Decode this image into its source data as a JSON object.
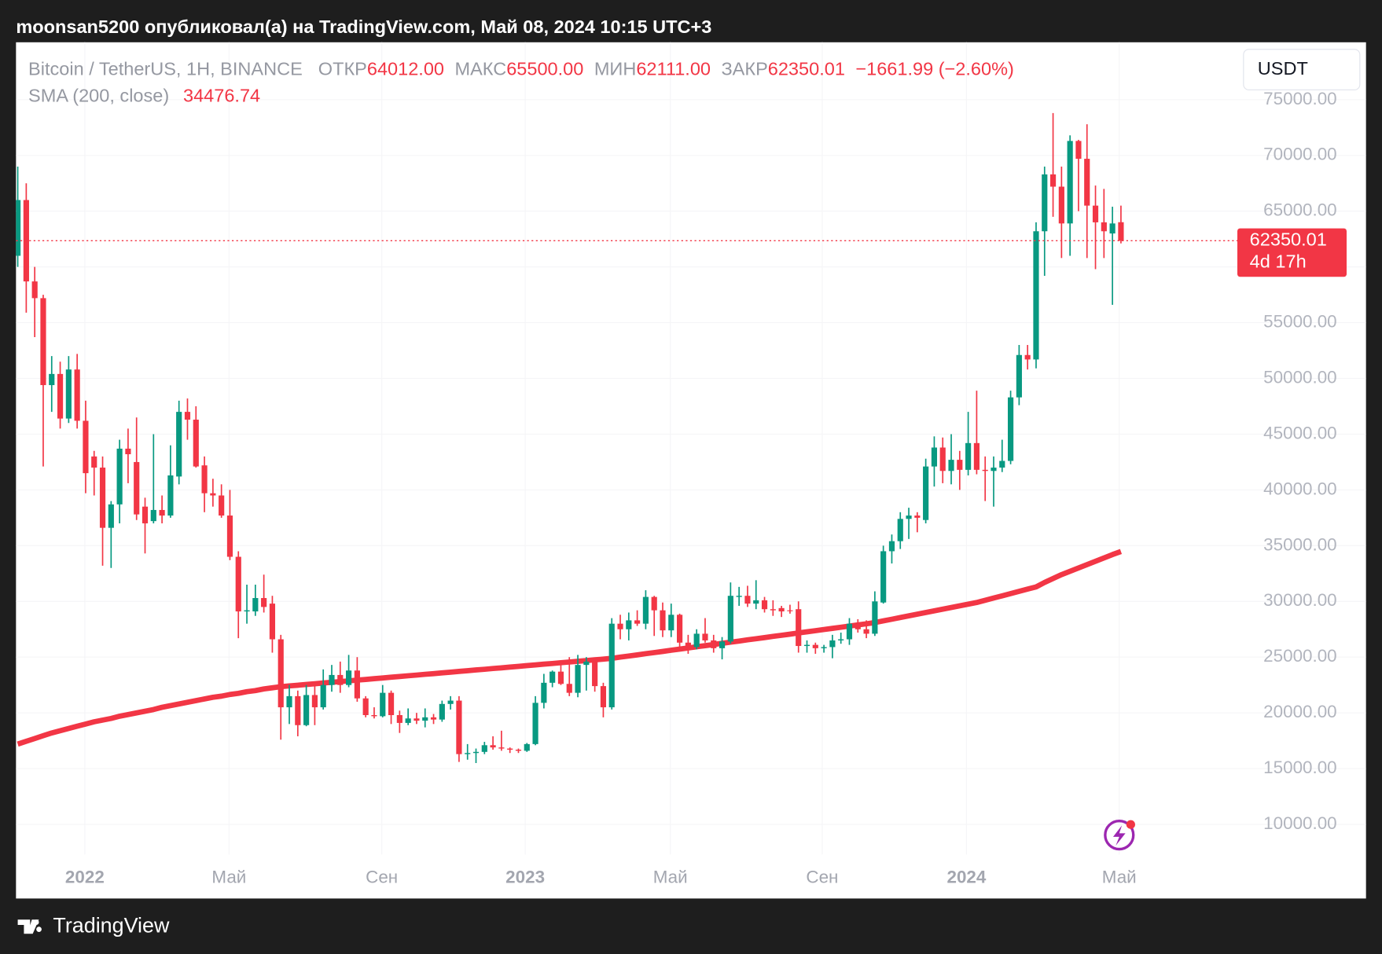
{
  "header": {
    "caption": "moonsan5200 опубликовал(а) на TradingView.com, Май 08, 2024 10:15 UTC+3"
  },
  "chart_data": {
    "type": "candlestick",
    "symbol": "Bitcoin / TetherUS, 1H, BINANCE",
    "legend_items": [
      {
        "label": "ОТКР",
        "value": "64012.00"
      },
      {
        "label": "МАКС",
        "value": "65500.00"
      },
      {
        "label": "МИН",
        "value": "62111.00"
      },
      {
        "label": "ЗАКР",
        "value": "62350.01"
      }
    ],
    "change": "−1661.99 (−2.60%)",
    "currency": "USDT",
    "countdown": "4d 17h",
    "up_color": "#089981",
    "down_color": "#f23645",
    "grid": true,
    "ylim": [
      7300,
      80150
    ],
    "yticks": [
      {
        "value": 10000,
        "label": "10000.00"
      },
      {
        "value": 15000,
        "label": "15000.00"
      },
      {
        "value": 20000,
        "label": "20000.00"
      },
      {
        "value": 25000,
        "label": "25000.00"
      },
      {
        "value": 30000,
        "label": "30000.00"
      },
      {
        "value": 35000,
        "label": "35000.00"
      },
      {
        "value": 40000,
        "label": "40000.00"
      },
      {
        "value": 45000,
        "label": "45000.00"
      },
      {
        "value": 50000,
        "label": "50000.00"
      },
      {
        "value": 55000,
        "label": "55000.00"
      },
      {
        "value": 60000,
        "label": "60000.00"
      },
      {
        "value": 65000,
        "label": "65000.00"
      },
      {
        "value": 70000,
        "label": "70000.00"
      },
      {
        "value": 75000,
        "label": "75000.00"
      }
    ],
    "xticks": [
      {
        "value": 7.9,
        "label": "2022"
      },
      {
        "value": 24.9,
        "label": "Май"
      },
      {
        "value": 42.9,
        "label": "Сен"
      },
      {
        "value": 59.8,
        "label": "2023"
      },
      {
        "value": 76.9,
        "label": "Май"
      },
      {
        "value": 94.8,
        "label": "Сен"
      },
      {
        "value": 111.8,
        "label": "2024"
      },
      {
        "value": 129.8,
        "label": "Май"
      }
    ],
    "ohlc": [
      [
        61000,
        69000,
        60000,
        66000
      ],
      [
        66000,
        67500,
        55900,
        58700
      ],
      [
        58700,
        60000,
        53700,
        57200
      ],
      [
        57200,
        57500,
        42100,
        49400
      ],
      [
        49400,
        52000,
        47000,
        50400
      ],
      [
        50400,
        51500,
        45500,
        46400
      ],
      [
        46400,
        52000,
        46000,
        50800
      ],
      [
        50800,
        52200,
        45500,
        46200
      ],
      [
        46200,
        48000,
        39700,
        41500
      ],
      [
        43000,
        43500,
        39500,
        42000
      ],
      [
        42000,
        43000,
        33200,
        36600
      ],
      [
        36600,
        39000,
        33000,
        38700
      ],
      [
        38700,
        44500,
        37000,
        43700
      ],
      [
        43700,
        45500,
        40600,
        43200
      ],
      [
        42500,
        46500,
        37300,
        37800
      ],
      [
        38500,
        39300,
        34300,
        37000
      ],
      [
        37200,
        45000,
        37000,
        38200
      ],
      [
        38200,
        39500,
        37000,
        37700
      ],
      [
        37700,
        44000,
        37500,
        41300
      ],
      [
        41200,
        48000,
        40500,
        47000
      ],
      [
        47000,
        48200,
        44500,
        46300
      ],
      [
        46300,
        47500,
        42000,
        42100
      ],
      [
        42200,
        43000,
        38000,
        39700
      ],
      [
        39700,
        41000,
        38500,
        39500
      ],
      [
        39500,
        40500,
        37500,
        37700
      ],
      [
        37700,
        40000,
        33700,
        34000
      ],
      [
        34000,
        34500,
        26700,
        29100
      ],
      [
        29100,
        31500,
        28000,
        29200
      ],
      [
        29100,
        31500,
        28700,
        30300
      ],
      [
        30300,
        32400,
        29000,
        29500
      ],
      [
        29800,
        30500,
        25400,
        26600
      ],
      [
        26600,
        27000,
        17600,
        20500
      ],
      [
        20500,
        22500,
        19000,
        21500
      ],
      [
        21500,
        22000,
        17900,
        18900
      ],
      [
        18900,
        22500,
        18800,
        21600
      ],
      [
        21600,
        22500,
        18900,
        20500
      ],
      [
        20500,
        23900,
        20300,
        22500
      ],
      [
        22500,
        24300,
        21900,
        23400
      ],
      [
        23400,
        24600,
        21800,
        22500
      ],
      [
        22500,
        25200,
        22300,
        23800
      ],
      [
        23800,
        25000,
        21000,
        21300
      ],
      [
        21300,
        21500,
        19600,
        19800
      ],
      [
        19800,
        20500,
        19500,
        19700
      ],
      [
        19700,
        22500,
        19600,
        21800
      ],
      [
        21800,
        22000,
        19000,
        19800
      ],
      [
        19800,
        20200,
        18200,
        19100
      ],
      [
        19100,
        20400,
        18900,
        19500
      ],
      [
        19500,
        20000,
        19000,
        19300
      ],
      [
        19300,
        20400,
        18700,
        19600
      ],
      [
        19600,
        19900,
        19000,
        19400
      ],
      [
        19400,
        21100,
        19200,
        20800
      ],
      [
        20800,
        21500,
        20300,
        21100
      ],
      [
        21100,
        21500,
        15600,
        16300
      ],
      [
        16300,
        17200,
        15800,
        16400
      ],
      [
        16400,
        16800,
        15500,
        16500
      ],
      [
        16500,
        17400,
        16300,
        17100
      ],
      [
        17100,
        17900,
        16700,
        16900
      ],
      [
        16900,
        18400,
        16600,
        16800
      ],
      [
        16800,
        16900,
        16400,
        16700
      ],
      [
        16700,
        16800,
        16400,
        16600
      ],
      [
        16600,
        17300,
        16500,
        17200
      ],
      [
        17200,
        21500,
        17100,
        20900
      ],
      [
        20900,
        23500,
        20400,
        22700
      ],
      [
        22700,
        23800,
        22300,
        23700
      ],
      [
        23700,
        24300,
        22500,
        22600
      ],
      [
        22600,
        25000,
        21500,
        21800
      ],
      [
        21800,
        25200,
        21400,
        24300
      ],
      [
        24300,
        25000,
        22000,
        24600
      ],
      [
        24600,
        24700,
        21900,
        22400
      ],
      [
        22400,
        22700,
        19600,
        20500
      ],
      [
        20500,
        28500,
        20300,
        28000
      ],
      [
        28000,
        28800,
        26600,
        27500
      ],
      [
        27500,
        29000,
        26500,
        28300
      ],
      [
        28300,
        29200,
        27800,
        28000
      ],
      [
        28000,
        31000,
        27500,
        30400
      ],
      [
        30400,
        30500,
        26900,
        29200
      ],
      [
        29200,
        29900,
        26800,
        27400
      ],
      [
        27400,
        29800,
        26800,
        28800
      ],
      [
        28800,
        28900,
        25800,
        26300
      ],
      [
        26300,
        27000,
        25300,
        25900
      ],
      [
        25900,
        27500,
        25700,
        27100
      ],
      [
        27100,
        28500,
        26300,
        26500
      ],
      [
        26500,
        27000,
        25400,
        25800
      ],
      [
        25800,
        26800,
        24800,
        26400
      ],
      [
        26400,
        31700,
        26200,
        30500
      ],
      [
        30400,
        31300,
        29600,
        30500
      ],
      [
        30500,
        31400,
        29500,
        29800
      ],
      [
        29800,
        31900,
        29300,
        30100
      ],
      [
        30100,
        30400,
        29000,
        29300
      ],
      [
        29300,
        30100,
        28700,
        29200
      ],
      [
        29400,
        29600,
        28600,
        29100
      ],
      [
        29200,
        29700,
        28900,
        29150
      ],
      [
        29300,
        30000,
        25400,
        26000
      ],
      [
        26000,
        26500,
        25400,
        26100
      ],
      [
        26100,
        26300,
        25300,
        25800
      ],
      [
        25800,
        26100,
        25400,
        25900
      ],
      [
        25900,
        27000,
        24900,
        26500
      ],
      [
        26500,
        27200,
        26200,
        26600
      ],
      [
        26600,
        28500,
        26100,
        28000
      ],
      [
        28000,
        28400,
        27200,
        27500
      ],
      [
        27500,
        28300,
        26700,
        27100
      ],
      [
        27100,
        30900,
        26900,
        30000
      ],
      [
        29900,
        35000,
        29800,
        34500
      ],
      [
        34500,
        36000,
        33400,
        35400
      ],
      [
        35400,
        38000,
        34700,
        37400
      ],
      [
        37400,
        38400,
        35600,
        37700
      ],
      [
        37700,
        38000,
        36200,
        37500
      ],
      [
        37300,
        42800,
        37000,
        42100
      ],
      [
        42100,
        44800,
        40300,
        43800
      ],
      [
        43800,
        44700,
        40600,
        41700
      ],
      [
        41700,
        45000,
        40500,
        42700
      ],
      [
        42700,
        43500,
        40000,
        41800
      ],
      [
        41800,
        47000,
        41300,
        44200
      ],
      [
        44200,
        48900,
        41400,
        41800
      ],
      [
        41800,
        43000,
        39000,
        41700
      ],
      [
        41700,
        43000,
        38500,
        42000
      ],
      [
        42000,
        44500,
        41600,
        42600
      ],
      [
        42600,
        48900,
        42300,
        48300
      ],
      [
        48300,
        53000,
        47600,
        52100
      ],
      [
        52100,
        53000,
        50800,
        51700
      ],
      [
        51700,
        64000,
        50900,
        63200
      ],
      [
        63200,
        69000,
        59200,
        68300
      ],
      [
        68300,
        73800,
        64500,
        67200
      ],
      [
        67200,
        69000,
        60800,
        63900
      ],
      [
        63900,
        71800,
        61000,
        71300
      ],
      [
        71300,
        71400,
        65000,
        69700
      ],
      [
        69700,
        72800,
        60800,
        65500
      ],
      [
        65500,
        67300,
        59800,
        64000
      ],
      [
        64000,
        67000,
        60800,
        63200
      ],
      [
        63000,
        65400,
        56600,
        63900
      ],
      [
        64012,
        65500,
        62111,
        62350.01
      ]
    ],
    "sma": {
      "name": "SMA (200, close)",
      "color": "#f23645",
      "values": [
        17200,
        17450,
        17700,
        17950,
        18200,
        18400,
        18600,
        18800,
        19000,
        19200,
        19350,
        19500,
        19700,
        19850,
        20000,
        20150,
        20300,
        20500,
        20650,
        20800,
        20950,
        21100,
        21250,
        21400,
        21500,
        21650,
        21750,
        21900,
        22000,
        22150,
        22250,
        22350,
        22420,
        22480,
        22550,
        22610,
        22680,
        22740,
        22810,
        22870,
        22940,
        23000,
        23070,
        23130,
        23200,
        23260,
        23330,
        23390,
        23460,
        23520,
        23590,
        23650,
        23720,
        23780,
        23850,
        23910,
        23980,
        24040,
        24110,
        24170,
        24240,
        24300,
        24370,
        24430,
        24500,
        24560,
        24630,
        24690,
        24760,
        24820,
        24890,
        25000,
        25100,
        25200,
        25310,
        25410,
        25510,
        25620,
        25720,
        25820,
        25930,
        26030,
        26130,
        26240,
        26340,
        26440,
        26550,
        26650,
        26750,
        26860,
        26960,
        27060,
        27170,
        27270,
        27370,
        27480,
        27580,
        27680,
        27790,
        27890,
        27990,
        28100,
        28250,
        28400,
        28550,
        28700,
        28850,
        29000,
        29150,
        29300,
        29450,
        29600,
        29750,
        29900,
        30100,
        30300,
        30500,
        30700,
        30900,
        31100,
        31300,
        31700,
        32050,
        32400,
        32700,
        33000,
        33300,
        33600,
        33900,
        34200,
        34476.74
      ]
    }
  },
  "footer": {
    "brand": "TradingView"
  }
}
